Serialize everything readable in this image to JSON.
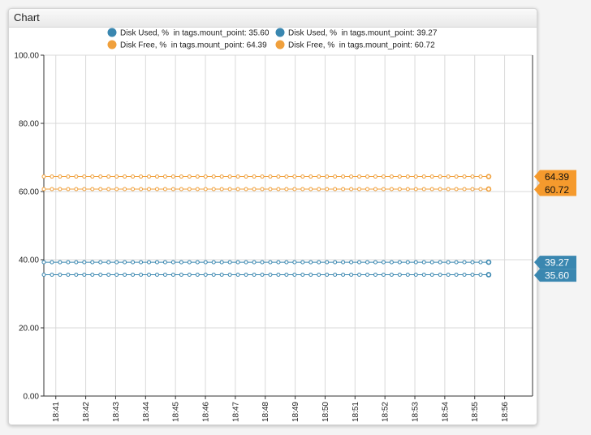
{
  "widget": {
    "title": "Chart"
  },
  "chart_data": {
    "type": "line",
    "title": "",
    "xlabel": "",
    "ylabel": "",
    "ylim": [
      0,
      100
    ],
    "y_ticks": [
      "0.00",
      "20.00",
      "40.00",
      "60.00",
      "80.00",
      "100.00"
    ],
    "x_ticks": [
      "18:41",
      "18:42",
      "18:43",
      "18:44",
      "18:45",
      "18:46",
      "18:47",
      "18:48",
      "18:49",
      "18:50",
      "18:51",
      "18:52",
      "18:53",
      "18:54",
      "18:55",
      "18:56"
    ],
    "x_range": [
      "18:40:36",
      "18:56:56"
    ],
    "point_times": [
      "18:40:36",
      "18:55:28"
    ],
    "point_count": 56,
    "grid": true,
    "legend_position": "top",
    "series": [
      {
        "legend": "Disk Used, %  in tags.mount_point: 35.60",
        "value": 35.6,
        "last_label": "35.60",
        "color": "#3a87b0",
        "badge_color": "#3a87b0"
      },
      {
        "legend": "Disk Used, %  in tags.mount_point: 39.27",
        "value": 39.27,
        "last_label": "39.27",
        "color": "#3a87b0",
        "badge_color": "#3a87b0"
      },
      {
        "legend": "Disk Free, %  in tags.mount_point: 64.39",
        "value": 64.39,
        "last_label": "64.39",
        "color": "#f0a03c",
        "badge_color": "#f59a2d"
      },
      {
        "legend": "Disk Free, %  in tags.mount_point: 60.72",
        "value": 60.72,
        "last_label": "60.72",
        "color": "#f0a03c",
        "badge_color": "#f59a2d"
      }
    ]
  }
}
